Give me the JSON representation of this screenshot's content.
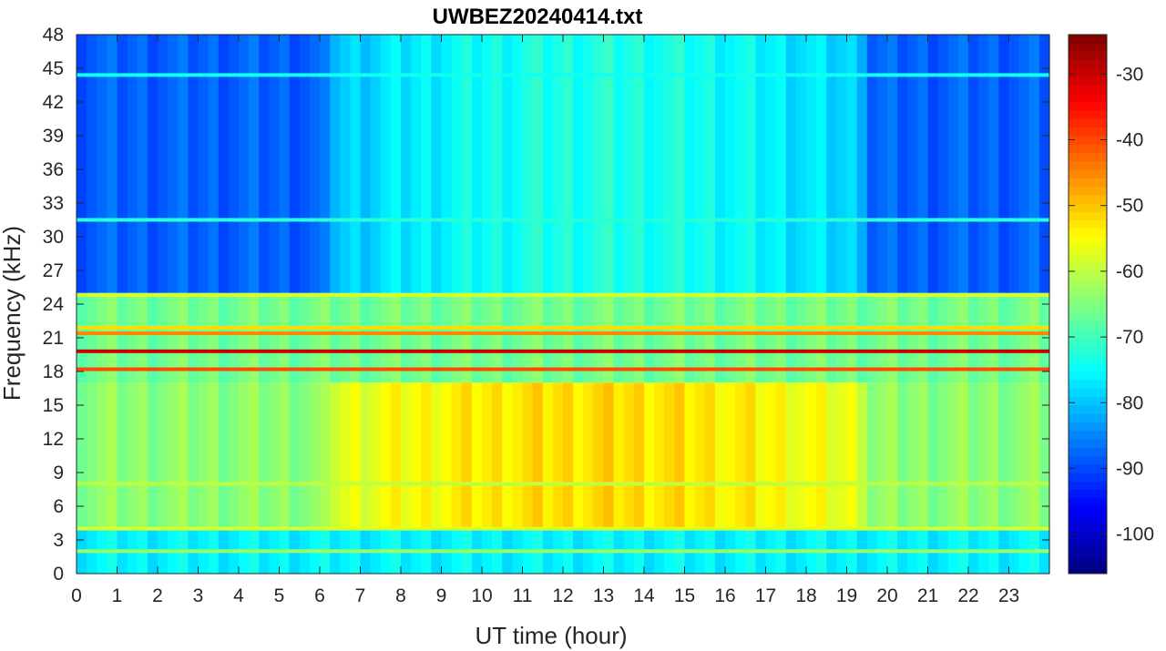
{
  "chart_data": {
    "type": "heatmap",
    "title": "UWBEZ20240414.txt",
    "xlabel": "UT time (hour)",
    "ylabel": "Frequency (kHz)",
    "xlim": [
      0,
      24
    ],
    "ylim": [
      0,
      48
    ],
    "x_ticks": [
      "0",
      "1",
      "2",
      "3",
      "4",
      "5",
      "6",
      "7",
      "8",
      "9",
      "10",
      "11",
      "12",
      "13",
      "14",
      "15",
      "16",
      "17",
      "18",
      "19",
      "20",
      "21",
      "22",
      "23"
    ],
    "y_ticks": [
      "0",
      "3",
      "6",
      "9",
      "12",
      "15",
      "18",
      "21",
      "24",
      "27",
      "30",
      "33",
      "36",
      "39",
      "42",
      "45",
      "48"
    ],
    "colorbar": {
      "colormap": "jet",
      "range": [
        -106,
        -24
      ],
      "ticks": [
        "-30",
        "-40",
        "-50",
        "-60",
        "-70",
        "-80",
        "-90",
        "-100"
      ]
    },
    "narrowband_lines_khz": [
      {
        "freq": 19.8,
        "level_db": -30,
        "hours": [
          0,
          24
        ]
      },
      {
        "freq": 18.2,
        "level_db": -40,
        "hours": [
          0,
          24
        ]
      },
      {
        "freq": 21.4,
        "level_db": -45,
        "hours": [
          0,
          24
        ]
      },
      {
        "freq": 21.9,
        "level_db": -52,
        "hours": [
          0,
          24
        ]
      },
      {
        "freq": 24.8,
        "level_db": -58,
        "hours": [
          0,
          24
        ]
      },
      {
        "freq": 4.0,
        "level_db": -58,
        "hours": [
          0,
          24
        ]
      },
      {
        "freq": 2.0,
        "level_db": -63,
        "hours": [
          0,
          24
        ]
      },
      {
        "freq": 8.0,
        "level_db": -60,
        "hours": [
          0,
          24
        ]
      },
      {
        "freq": 31.5,
        "level_db": -72,
        "hours": [
          0,
          24
        ]
      },
      {
        "freq": 44.4,
        "level_db": -74,
        "hours": [
          0,
          24
        ]
      }
    ],
    "background_levels_db": [
      {
        "band_khz": [
          0,
          4
        ],
        "level_db": -76
      },
      {
        "band_khz": [
          4,
          17
        ],
        "level_db": -64,
        "daytime_hours": [
          6.3,
          19.5
        ],
        "daytime_level_db": -52
      },
      {
        "band_khz": [
          17,
          25
        ],
        "level_db": -66
      },
      {
        "band_khz": [
          25,
          48
        ],
        "level_db": -88,
        "daytime_hours": [
          6.3,
          19.5
        ],
        "daytime_level_db": -73
      }
    ]
  }
}
